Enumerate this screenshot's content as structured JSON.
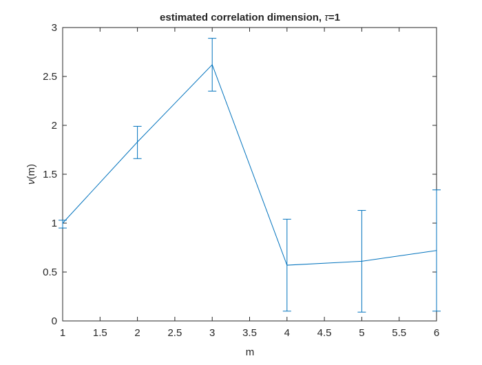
{
  "chart_data": {
    "type": "line",
    "title_prefix": "estimated correlation dimension, ",
    "title_symbol": "τ",
    "title_suffix": "=1",
    "xlabel": "m",
    "ylabel_symbol": "ν",
    "ylabel_suffix": "(m)",
    "xlim": [
      1,
      6
    ],
    "ylim": [
      0,
      3
    ],
    "grid": false,
    "x_ticks": [
      "1",
      "1.5",
      "2",
      "2.5",
      "3",
      "3.5",
      "4",
      "4.5",
      "5",
      "5.5",
      "6"
    ],
    "y_ticks": [
      "0",
      "0.5",
      "1",
      "1.5",
      "2",
      "2.5",
      "3"
    ],
    "series": [
      {
        "x": [
          1,
          2,
          3,
          4,
          5,
          6
        ],
        "y": [
          1.0,
          1.83,
          2.62,
          0.57,
          0.61,
          0.72
        ],
        "err_low": [
          0.95,
          1.66,
          2.35,
          0.1,
          0.09,
          0.1
        ],
        "err_high": [
          1.03,
          1.99,
          2.89,
          1.04,
          1.13,
          1.34
        ],
        "color": "#0072BD"
      }
    ],
    "axis_color": "#262626"
  }
}
